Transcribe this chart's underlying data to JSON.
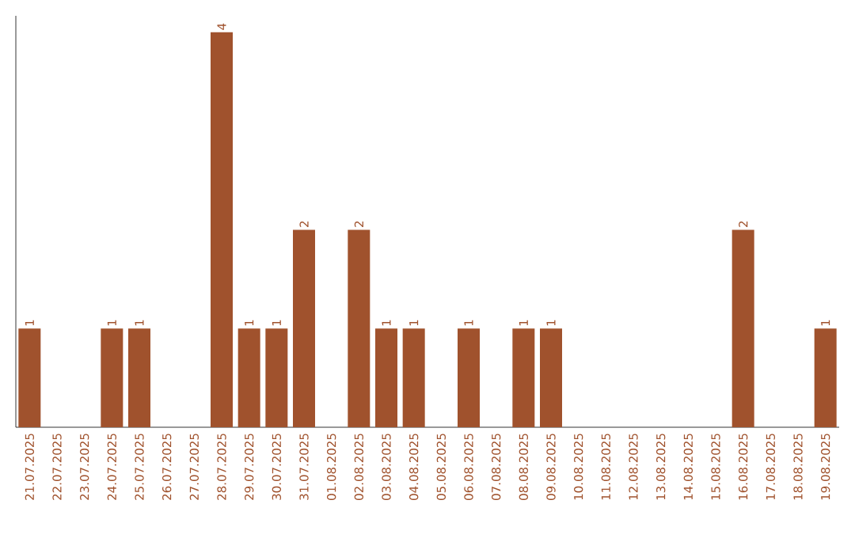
{
  "chart_data": {
    "type": "bar",
    "categories": [
      "21.07.2025",
      "22.07.2025",
      "23.07.2025",
      "24.07.2025",
      "25.07.2025",
      "26.07.2025",
      "27.07.2025",
      "28.07.2025",
      "29.07.2025",
      "30.07.2025",
      "31.07.2025",
      "01.08.2025",
      "02.08.2025",
      "03.08.2025",
      "04.08.2025",
      "05.08.2025",
      "06.08.2025",
      "07.08.2025",
      "08.08.2025",
      "09.08.2025",
      "10.08.2025",
      "11.08.2025",
      "12.08.2025",
      "13.08.2025",
      "14.08.2025",
      "15.08.2025",
      "16.08.2025",
      "17.08.2025",
      "18.08.2025",
      "19.08.2025"
    ],
    "values": [
      1,
      0,
      0,
      1,
      1,
      0,
      0,
      4,
      1,
      1,
      2,
      0,
      2,
      1,
      1,
      0,
      1,
      0,
      1,
      1,
      0,
      0,
      0,
      0,
      0,
      0,
      2,
      0,
      0,
      1
    ],
    "value_labels": [
      "1",
      null,
      null,
      "1",
      "1",
      null,
      null,
      "4",
      "1",
      "1",
      "2",
      null,
      "2",
      "1",
      "1",
      null,
      "1",
      null,
      "1",
      "1",
      null,
      null,
      null,
      null,
      null,
      null,
      "2",
      null,
      null,
      "1"
    ],
    "color": "#a0522d"
  }
}
